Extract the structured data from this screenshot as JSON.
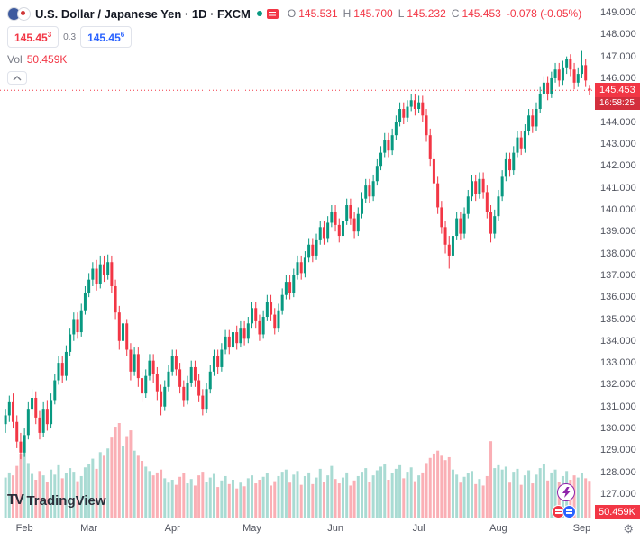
{
  "header": {
    "title": "U.S. Dollar / Japanese Yen · 1D · FXCM",
    "ohlc": {
      "o_label": "O",
      "o_value": "145.531",
      "h_label": "H",
      "h_value": "145.700",
      "l_label": "L",
      "l_value": "145.232",
      "c_label": "C",
      "c_value": "145.453",
      "change": "-0.078 (-0.05%)"
    },
    "bid_main": "145.45",
    "bid_sup": "3",
    "spread": "0.3",
    "ask_main": "145.45",
    "ask_sup": "6",
    "vol_label": "Vol",
    "vol_value": "50.459K"
  },
  "logo": {
    "mark": "TV",
    "text": "TradingView"
  },
  "icons": {
    "market_status": "green-dot",
    "news": "red-list-icon",
    "collapse": "chevron-up",
    "quick_trade": "lightning-bolt",
    "orders": "buy-sell-bubbles",
    "settings": "gear",
    "gear_glyph": "⚙"
  },
  "colors": {
    "up": "#089981",
    "down": "#F23645",
    "vol_up": "rgba(8,153,129,0.35)",
    "vol_down": "rgba(242,54,69,0.40)",
    "blue": "#2962FF",
    "purple": "#8e24aa",
    "last_price_bg": "#F23645",
    "countdown_bg": "#d32f3d"
  },
  "chart_data": {
    "type": "candlestick",
    "title": "U.S. Dollar / Japanese Yen",
    "interval": "1D",
    "exchange": "FXCM",
    "last_price_label": "145.453",
    "countdown": "16:58:25",
    "last_volume_label": "50.459K",
    "ylim": [
      125.9,
      149.6
    ],
    "y_ticks": [
      "149.000",
      "148.000",
      "147.000",
      "146.000",
      "145.000",
      "144.000",
      "143.000",
      "142.000",
      "141.000",
      "140.000",
      "139.000",
      "138.000",
      "137.000",
      "136.000",
      "135.000",
      "134.000",
      "133.000",
      "132.000",
      "131.000",
      "130.000",
      "129.000",
      "128.000",
      "127.000"
    ],
    "months": [
      {
        "label": "Feb",
        "index": 5
      },
      {
        "label": "Mar",
        "index": 22
      },
      {
        "label": "Apr",
        "index": 44
      },
      {
        "label": "May",
        "index": 65
      },
      {
        "label": "Jun",
        "index": 87
      },
      {
        "label": "Jul",
        "index": 109
      },
      {
        "label": "Aug",
        "index": 130
      },
      {
        "label": "Sep",
        "index": 152
      }
    ],
    "columns": [
      "open",
      "high",
      "low",
      "close",
      "volume_thousands"
    ],
    "candles": [
      [
        130.2,
        130.9,
        129.8,
        130.6,
        55
      ],
      [
        130.6,
        131.5,
        130.3,
        131.2,
        62
      ],
      [
        131.2,
        131.6,
        130.0,
        130.3,
        58
      ],
      [
        130.3,
        130.6,
        129.1,
        129.4,
        71
      ],
      [
        129.4,
        129.8,
        128.6,
        128.9,
        88
      ],
      [
        128.9,
        130.0,
        128.7,
        129.7,
        90
      ],
      [
        129.7,
        131.2,
        129.5,
        130.9,
        75
      ],
      [
        130.9,
        131.8,
        130.6,
        131.4,
        60
      ],
      [
        131.4,
        131.7,
        130.2,
        130.5,
        52
      ],
      [
        130.5,
        130.8,
        129.5,
        129.8,
        64
      ],
      [
        129.8,
        131.2,
        129.6,
        130.9,
        58
      ],
      [
        130.9,
        131.3,
        129.9,
        130.2,
        49
      ],
      [
        130.2,
        131.6,
        130.0,
        131.3,
        66
      ],
      [
        131.3,
        132.5,
        131.1,
        132.2,
        59
      ],
      [
        132.2,
        133.3,
        132.0,
        133.0,
        72
      ],
      [
        133.0,
        133.3,
        132.1,
        132.4,
        54
      ],
      [
        132.4,
        133.8,
        132.2,
        133.5,
        61
      ],
      [
        133.5,
        134.6,
        133.3,
        134.3,
        68
      ],
      [
        134.3,
        135.3,
        134.0,
        135.0,
        63
      ],
      [
        135.0,
        135.3,
        134.1,
        134.4,
        50
      ],
      [
        134.4,
        135.7,
        134.2,
        135.4,
        57
      ],
      [
        135.4,
        136.5,
        135.2,
        136.2,
        69
      ],
      [
        136.2,
        137.1,
        136.0,
        136.8,
        74
      ],
      [
        136.8,
        137.6,
        136.5,
        137.3,
        81
      ],
      [
        137.3,
        137.7,
        136.3,
        136.6,
        67
      ],
      [
        136.6,
        137.9,
        136.4,
        137.5,
        90
      ],
      [
        137.5,
        137.9,
        136.7,
        137.0,
        85
      ],
      [
        137.0,
        137.95,
        136.8,
        137.6,
        95
      ],
      [
        137.6,
        137.9,
        136.2,
        136.5,
        110
      ],
      [
        136.5,
        136.8,
        135.0,
        135.3,
        125
      ],
      [
        135.3,
        135.6,
        133.6,
        134.0,
        130
      ],
      [
        134.0,
        135.1,
        133.8,
        134.8,
        98
      ],
      [
        134.8,
        135.0,
        133.3,
        133.6,
        112
      ],
      [
        133.6,
        133.9,
        132.2,
        132.6,
        120
      ],
      [
        132.6,
        133.7,
        132.4,
        133.4,
        92
      ],
      [
        133.4,
        133.7,
        131.9,
        132.3,
        85
      ],
      [
        132.3,
        132.6,
        131.2,
        131.6,
        78
      ],
      [
        131.6,
        132.7,
        131.4,
        132.4,
        70
      ],
      [
        132.4,
        133.4,
        132.2,
        133.1,
        64
      ],
      [
        133.1,
        133.4,
        132.1,
        132.5,
        58
      ],
      [
        132.5,
        132.8,
        131.3,
        131.7,
        62
      ],
      [
        131.7,
        132.0,
        130.6,
        131.0,
        66
      ],
      [
        131.0,
        132.2,
        130.8,
        131.9,
        54
      ],
      [
        131.9,
        132.9,
        131.7,
        132.6,
        48
      ],
      [
        132.6,
        133.6,
        132.4,
        133.3,
        52
      ],
      [
        133.3,
        133.6,
        132.4,
        132.7,
        45
      ],
      [
        132.7,
        133.0,
        131.6,
        131.9,
        56
      ],
      [
        131.9,
        132.2,
        131.0,
        131.3,
        61
      ],
      [
        131.3,
        132.4,
        131.1,
        132.1,
        47
      ],
      [
        132.1,
        133.1,
        131.9,
        132.8,
        53
      ],
      [
        132.8,
        133.1,
        131.9,
        132.2,
        44
      ],
      [
        132.2,
        132.5,
        131.2,
        131.5,
        58
      ],
      [
        131.5,
        131.8,
        130.6,
        130.9,
        63
      ],
      [
        130.9,
        132.1,
        130.7,
        131.8,
        49
      ],
      [
        131.8,
        132.9,
        131.6,
        132.6,
        55
      ],
      [
        132.6,
        133.6,
        132.4,
        133.3,
        60
      ],
      [
        133.3,
        133.6,
        132.5,
        132.8,
        42
      ],
      [
        132.8,
        133.9,
        132.6,
        133.6,
        51
      ],
      [
        133.6,
        134.5,
        133.4,
        134.2,
        57
      ],
      [
        134.2,
        134.5,
        133.4,
        133.7,
        46
      ],
      [
        133.7,
        134.7,
        133.5,
        134.4,
        52
      ],
      [
        134.4,
        134.7,
        133.6,
        133.9,
        40
      ],
      [
        133.9,
        134.9,
        133.7,
        134.6,
        48
      ],
      [
        134.6,
        134.9,
        133.8,
        134.1,
        43
      ],
      [
        134.1,
        135.1,
        133.9,
        134.8,
        54
      ],
      [
        134.8,
        135.8,
        134.6,
        135.5,
        58
      ],
      [
        135.5,
        135.8,
        134.6,
        134.9,
        47
      ],
      [
        134.9,
        135.2,
        134.0,
        134.3,
        52
      ],
      [
        134.3,
        135.4,
        134.1,
        135.1,
        56
      ],
      [
        135.1,
        136.1,
        134.9,
        135.8,
        61
      ],
      [
        135.8,
        136.1,
        134.9,
        135.2,
        44
      ],
      [
        135.2,
        135.5,
        134.3,
        134.6,
        50
      ],
      [
        134.6,
        135.7,
        134.4,
        135.4,
        57
      ],
      [
        135.4,
        136.4,
        135.2,
        136.1,
        63
      ],
      [
        136.1,
        137.0,
        135.9,
        136.7,
        66
      ],
      [
        136.7,
        137.0,
        135.9,
        136.2,
        48
      ],
      [
        136.2,
        137.3,
        136.0,
        137.0,
        59
      ],
      [
        137.0,
        137.9,
        136.8,
        137.6,
        64
      ],
      [
        137.6,
        137.9,
        136.8,
        137.1,
        45
      ],
      [
        137.1,
        138.1,
        136.9,
        137.8,
        57
      ],
      [
        137.8,
        138.7,
        137.6,
        138.4,
        62
      ],
      [
        138.4,
        138.7,
        137.6,
        137.9,
        46
      ],
      [
        137.9,
        138.9,
        137.7,
        138.6,
        55
      ],
      [
        138.6,
        139.5,
        138.4,
        139.2,
        67
      ],
      [
        139.2,
        139.5,
        138.4,
        138.7,
        49
      ],
      [
        138.7,
        139.7,
        138.5,
        139.4,
        58
      ],
      [
        139.4,
        140.2,
        139.2,
        139.9,
        71
      ],
      [
        139.9,
        140.2,
        139.0,
        139.3,
        53
      ],
      [
        139.3,
        139.6,
        138.5,
        138.8,
        47
      ],
      [
        138.8,
        139.8,
        138.6,
        139.5,
        55
      ],
      [
        139.5,
        140.5,
        139.3,
        140.2,
        62
      ],
      [
        140.2,
        140.5,
        139.3,
        139.6,
        44
      ],
      [
        139.6,
        139.9,
        138.7,
        139.0,
        51
      ],
      [
        139.0,
        140.1,
        138.8,
        139.8,
        57
      ],
      [
        139.8,
        140.8,
        139.6,
        140.5,
        63
      ],
      [
        140.5,
        141.4,
        140.3,
        141.1,
        68
      ],
      [
        141.1,
        141.4,
        140.3,
        140.6,
        49
      ],
      [
        140.6,
        141.6,
        140.4,
        141.3,
        58
      ],
      [
        141.3,
        142.3,
        141.1,
        142.0,
        65
      ],
      [
        142.0,
        142.9,
        141.8,
        142.6,
        70
      ],
      [
        142.6,
        143.5,
        142.4,
        143.2,
        73
      ],
      [
        143.2,
        143.5,
        142.4,
        142.7,
        52
      ],
      [
        142.7,
        143.7,
        142.5,
        143.4,
        61
      ],
      [
        143.4,
        144.3,
        143.2,
        144.0,
        67
      ],
      [
        144.0,
        144.9,
        143.8,
        144.6,
        72
      ],
      [
        144.6,
        144.9,
        143.9,
        144.2,
        54
      ],
      [
        144.2,
        145.0,
        144.0,
        144.7,
        63
      ],
      [
        144.7,
        145.3,
        144.5,
        145.0,
        69
      ],
      [
        145.0,
        145.3,
        144.3,
        144.6,
        50
      ],
      [
        144.6,
        145.2,
        144.4,
        144.9,
        58
      ],
      [
        144.9,
        145.2,
        144.0,
        144.3,
        62
      ],
      [
        144.3,
        144.6,
        143.1,
        143.4,
        75
      ],
      [
        143.4,
        143.7,
        142.0,
        142.3,
        82
      ],
      [
        142.3,
        142.6,
        140.9,
        141.2,
        88
      ],
      [
        141.2,
        141.5,
        139.8,
        140.1,
        92
      ],
      [
        140.1,
        140.4,
        138.9,
        139.2,
        85
      ],
      [
        139.2,
        139.5,
        138.0,
        138.4,
        79
      ],
      [
        138.4,
        138.8,
        137.3,
        137.9,
        83
      ],
      [
        137.9,
        139.1,
        137.7,
        138.8,
        66
      ],
      [
        138.8,
        139.9,
        138.6,
        139.6,
        59
      ],
      [
        139.6,
        139.9,
        138.6,
        138.9,
        48
      ],
      [
        138.9,
        140.1,
        138.7,
        139.8,
        56
      ],
      [
        139.8,
        140.9,
        139.6,
        140.6,
        61
      ],
      [
        140.6,
        141.6,
        140.4,
        141.3,
        64
      ],
      [
        141.3,
        141.6,
        140.4,
        140.7,
        46
      ],
      [
        140.7,
        141.7,
        140.5,
        141.4,
        53
      ],
      [
        141.4,
        141.7,
        140.5,
        140.8,
        44
      ],
      [
        140.8,
        141.1,
        139.6,
        139.9,
        57
      ],
      [
        139.9,
        140.2,
        138.5,
        138.9,
        105
      ],
      [
        138.9,
        140.0,
        138.7,
        139.7,
        68
      ],
      [
        139.7,
        140.9,
        139.5,
        140.6,
        72
      ],
      [
        140.6,
        141.8,
        140.4,
        141.5,
        66
      ],
      [
        141.5,
        142.6,
        141.3,
        142.3,
        70
      ],
      [
        142.3,
        142.6,
        141.5,
        141.8,
        48
      ],
      [
        141.8,
        142.9,
        141.6,
        142.6,
        63
      ],
      [
        142.6,
        143.6,
        142.4,
        143.3,
        67
      ],
      [
        143.3,
        143.6,
        142.5,
        142.8,
        45
      ],
      [
        142.8,
        143.9,
        142.6,
        143.6,
        58
      ],
      [
        143.6,
        144.6,
        143.4,
        144.3,
        65
      ],
      [
        144.3,
        144.6,
        143.5,
        143.8,
        47
      ],
      [
        143.8,
        144.9,
        143.6,
        144.6,
        59
      ],
      [
        144.6,
        145.6,
        144.4,
        145.3,
        68
      ],
      [
        145.3,
        146.1,
        145.1,
        145.8,
        74
      ],
      [
        145.8,
        146.1,
        145.0,
        145.3,
        51
      ],
      [
        145.3,
        146.3,
        145.1,
        146.0,
        62
      ],
      [
        146.0,
        146.7,
        145.8,
        146.4,
        66
      ],
      [
        146.4,
        146.7,
        145.6,
        145.9,
        49
      ],
      [
        145.9,
        146.8,
        145.7,
        146.5,
        57
      ],
      [
        146.5,
        147.0,
        146.2,
        146.9,
        64
      ],
      [
        146.9,
        147.1,
        146.1,
        146.4,
        52
      ],
      [
        146.4,
        146.7,
        145.5,
        145.8,
        58
      ],
      [
        145.8,
        146.5,
        145.6,
        146.2,
        55
      ],
      [
        146.2,
        147.25,
        146.0,
        146.6,
        61
      ],
      [
        146.6,
        146.9,
        145.6,
        145.9,
        54
      ],
      [
        145.531,
        145.7,
        145.232,
        145.453,
        50.459
      ]
    ]
  }
}
